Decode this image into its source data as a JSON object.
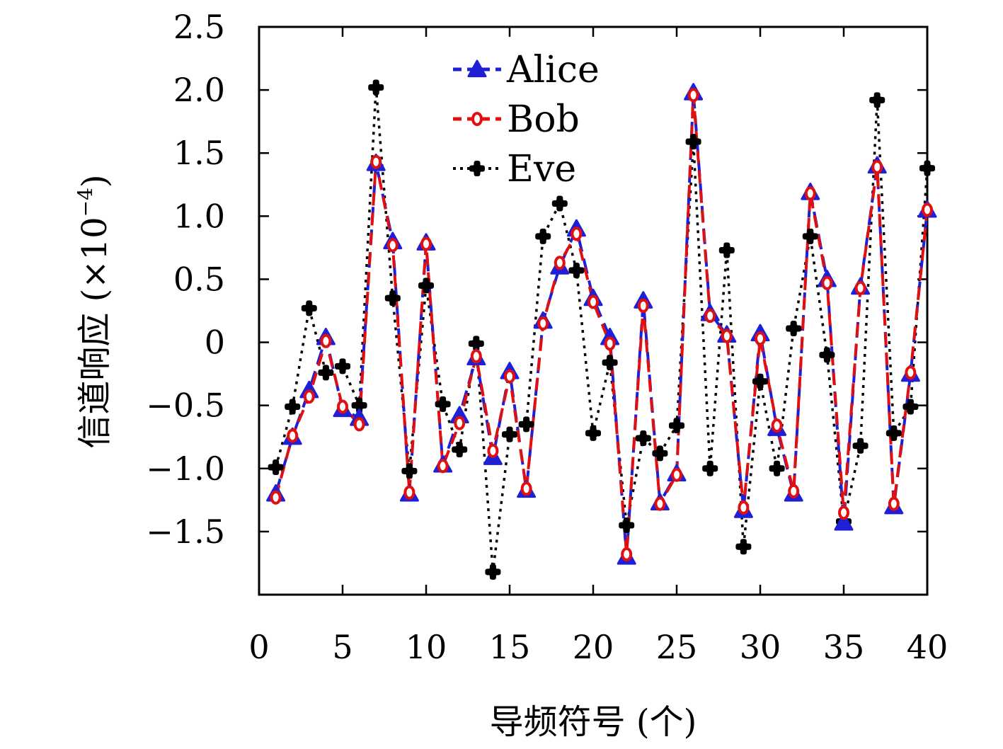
{
  "chart_data": {
    "type": "line",
    "title": "",
    "xlabel": "导频符号 (个)",
    "ylabel": "信道响应 (×10",
    "ylabel_exponent": "−4",
    "ylabel_close": ")",
    "xlim": [
      0,
      40
    ],
    "ylim": [
      -2.0,
      2.5
    ],
    "grid": false,
    "legend_position": "top-center",
    "xticks": [
      0,
      5,
      10,
      15,
      20,
      25,
      30,
      35,
      40
    ],
    "xtick_labels": [
      "0",
      "5",
      "10",
      "15",
      "20",
      "25",
      "30",
      "35",
      "40"
    ],
    "yticks": [
      2.5,
      2.0,
      1.5,
      1.0,
      0.5,
      0,
      -0.5,
      -1.0,
      -1.5
    ],
    "ytick_labels": [
      "2.5",
      "2.0",
      "1.5",
      "1.0",
      "0.5",
      "0",
      "−0.5",
      "−1.0",
      "−1.5"
    ],
    "x": [
      1,
      2,
      3,
      4,
      5,
      6,
      7,
      8,
      9,
      10,
      11,
      12,
      13,
      14,
      15,
      16,
      17,
      18,
      19,
      20,
      21,
      22,
      23,
      24,
      25,
      26,
      27,
      28,
      29,
      30,
      31,
      32,
      33,
      34,
      35,
      36,
      37,
      38,
      39,
      40
    ],
    "series": [
      {
        "name": "Alice",
        "color": "#1f1fd6",
        "marker": "triangle-filled",
        "values": [
          -1.2,
          -0.75,
          -0.38,
          0.04,
          -0.53,
          -0.6,
          1.42,
          0.8,
          -1.2,
          0.79,
          -0.97,
          -0.58,
          -0.12,
          -0.91,
          -0.23,
          -1.17,
          0.17,
          0.6,
          0.9,
          0.35,
          0.04,
          -1.7,
          0.33,
          -1.27,
          -1.04,
          1.98,
          0.23,
          0.06,
          -1.33,
          0.07,
          -0.68,
          -1.2,
          1.19,
          0.5,
          -1.43,
          0.44,
          1.4,
          -1.3,
          -0.25,
          1.05
        ]
      },
      {
        "name": "Bob",
        "color": "#e01010",
        "marker": "circle-open",
        "values": [
          -1.23,
          -0.74,
          -0.43,
          0.01,
          -0.51,
          -0.65,
          1.43,
          0.77,
          -1.19,
          0.78,
          -0.98,
          -0.64,
          -0.11,
          -0.86,
          -0.27,
          -1.16,
          0.15,
          0.63,
          0.86,
          0.32,
          -0.01,
          -1.68,
          0.29,
          -1.28,
          -1.05,
          1.96,
          0.21,
          0.05,
          -1.31,
          0.03,
          -0.66,
          -1.18,
          1.18,
          0.47,
          -1.35,
          0.43,
          1.39,
          -1.28,
          -0.24,
          1.05
        ]
      },
      {
        "name": "Eve",
        "color": "#000000",
        "marker": "plus-filled",
        "values": [
          -0.99,
          -0.51,
          0.27,
          -0.24,
          -0.19,
          -0.5,
          2.02,
          0.35,
          -1.02,
          0.45,
          -0.49,
          -0.85,
          -0.01,
          -1.82,
          -0.73,
          -0.65,
          0.84,
          1.1,
          0.57,
          -0.72,
          -0.16,
          -1.45,
          -0.76,
          -0.88,
          -0.66,
          1.59,
          -1.0,
          0.73,
          -1.62,
          -0.31,
          -1.0,
          0.11,
          0.84,
          -0.1,
          -1.42,
          -0.82,
          1.92,
          -0.72,
          -0.51,
          1.38
        ]
      }
    ]
  }
}
